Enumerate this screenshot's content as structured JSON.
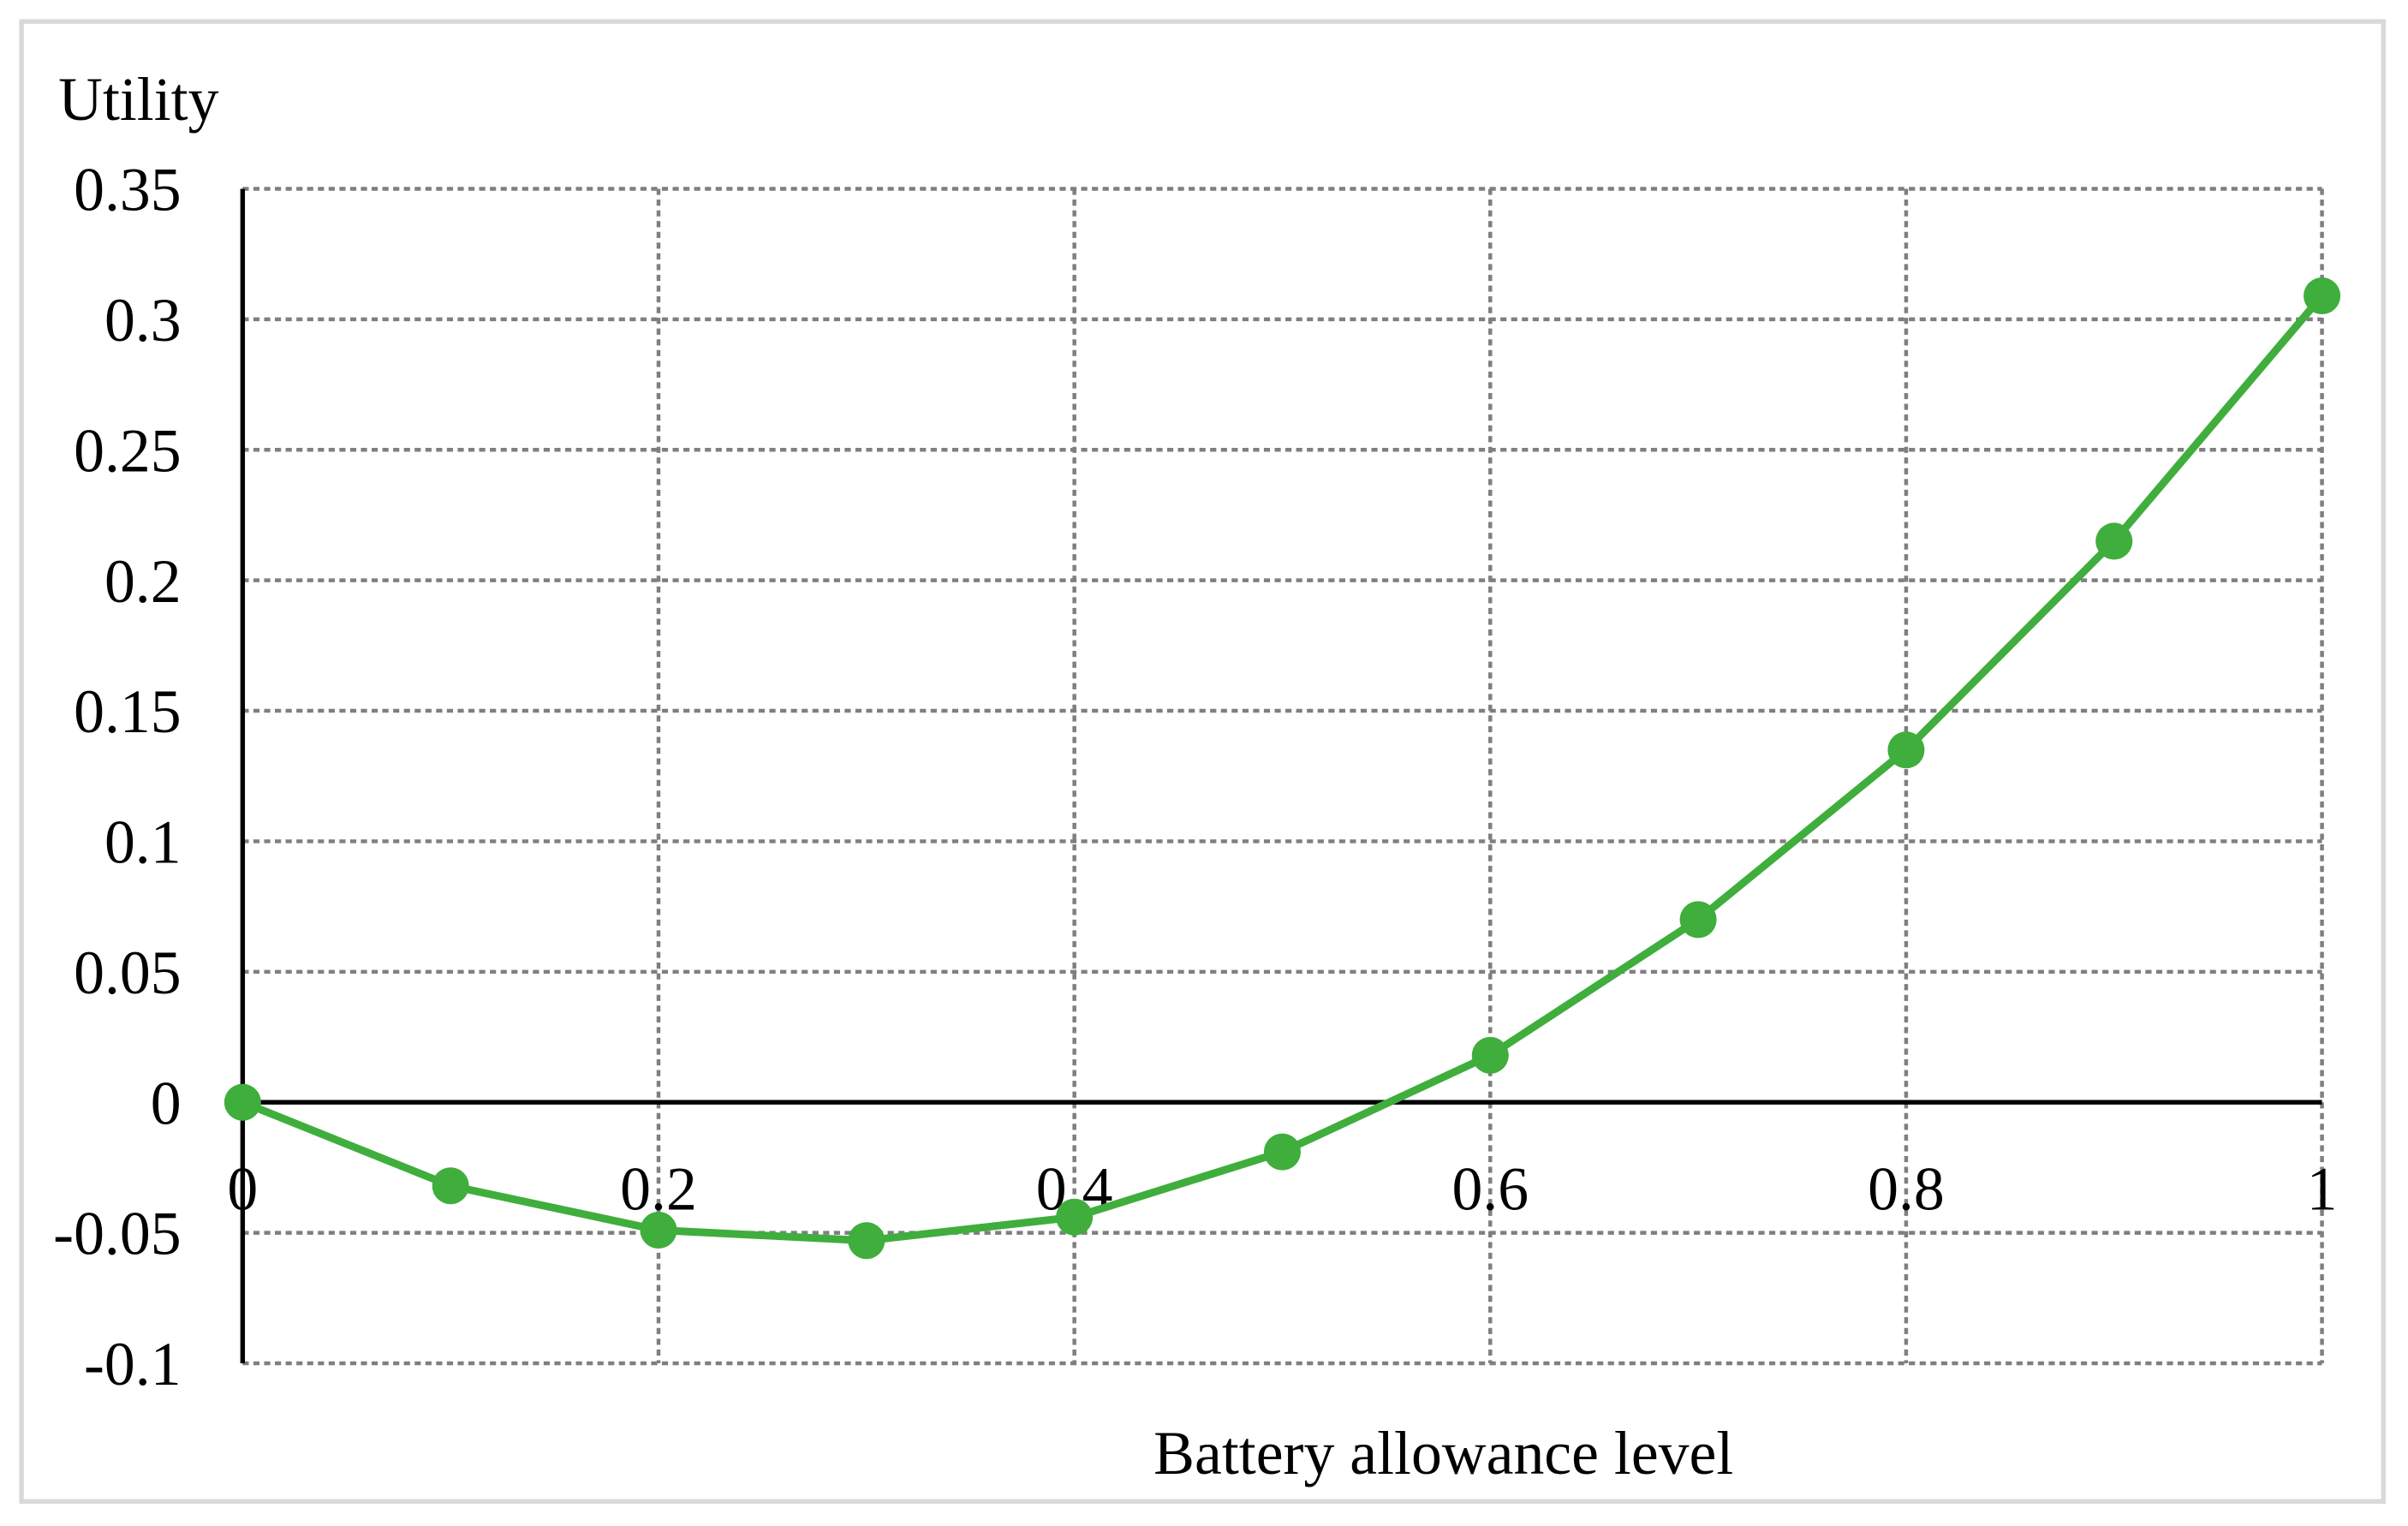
{
  "chart_data": {
    "type": "line",
    "y_label": "Utility",
    "x_label": "Battery allowance level",
    "x": [
      0,
      0.1,
      0.2,
      0.3,
      0.4,
      0.5,
      0.6,
      0.7,
      0.8,
      0.9,
      1
    ],
    "series": [
      {
        "color": "#3fae3c",
        "values": [
          0,
          -0.032,
          -0.049,
          -0.053,
          -0.044,
          -0.019,
          0.018,
          0.07,
          0.135,
          0.215,
          0.309
        ]
      }
    ],
    "xlim": [
      0,
      1
    ],
    "xticks": [
      0,
      0.2,
      0.4,
      0.6,
      0.8,
      1
    ],
    "ylim": [
      -0.1,
      0.35
    ],
    "yticks": [
      -0.1,
      -0.05,
      0,
      0.05,
      0.1,
      0.15,
      0.2,
      0.25,
      0.3,
      0.35
    ],
    "grid": true
  }
}
